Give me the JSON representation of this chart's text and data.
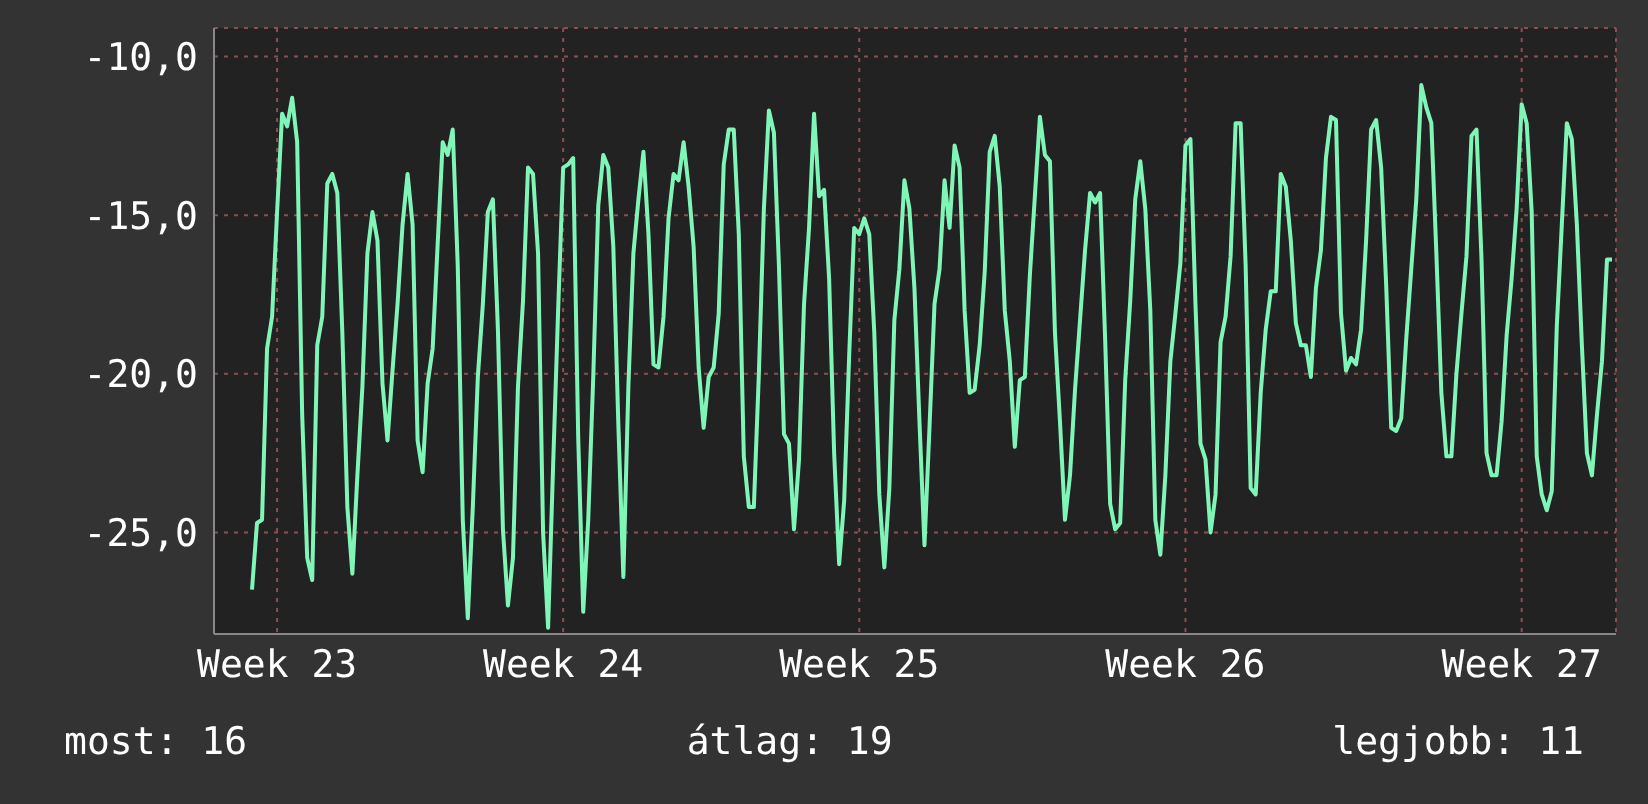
{
  "chart_data": {
    "type": "line",
    "categories": [
      null,
      null,
      null,
      null,
      null,
      "Week 23",
      null,
      null,
      null,
      null,
      null,
      null,
      null,
      null,
      null,
      null,
      null,
      null,
      null,
      null,
      null,
      null,
      null,
      null,
      null,
      null,
      null,
      null,
      null,
      null,
      null,
      null,
      null,
      null,
      null,
      null,
      null,
      null,
      null,
      null,
      null,
      null,
      null,
      null,
      null,
      null,
      null,
      null,
      null,
      null,
      null,
      null,
      null,
      null,
      null,
      null,
      null,
      null,
      null,
      null,
      null,
      null,
      "Week 24",
      null,
      null,
      null,
      null,
      null,
      null,
      null,
      null,
      null,
      null,
      null,
      null,
      null,
      null,
      null,
      null,
      null,
      null,
      null,
      null,
      null,
      null,
      null,
      null,
      null,
      null,
      null,
      null,
      null,
      null,
      null,
      null,
      null,
      null,
      null,
      null,
      null,
      null,
      null,
      null,
      null,
      null,
      null,
      null,
      null,
      null,
      null,
      null,
      null,
      null,
      null,
      null,
      null,
      null,
      null,
      null,
      null,
      null,
      "Week 25",
      null,
      null,
      null,
      null,
      null,
      null,
      null,
      null,
      null,
      null,
      null,
      null,
      null,
      null,
      null,
      null,
      null,
      null,
      null,
      null,
      null,
      null,
      null,
      null,
      null,
      null,
      null,
      null,
      null,
      null,
      null,
      null,
      null,
      null,
      null,
      null,
      null,
      null,
      null,
      null,
      null,
      null,
      null,
      null,
      null,
      null,
      null,
      null,
      null,
      null,
      null,
      null,
      null,
      null,
      null,
      null,
      null,
      null,
      null,
      null,
      null,
      null,
      null,
      null,
      "Week 26",
      null,
      null,
      null,
      null,
      null,
      null,
      null,
      null,
      null,
      null,
      null,
      null,
      null,
      null,
      null,
      null,
      null,
      null,
      null,
      null,
      null,
      null,
      null,
      null,
      null,
      null,
      null,
      null,
      null,
      null,
      null,
      null,
      null,
      null,
      null,
      null,
      null,
      null,
      null,
      null,
      null,
      null,
      null,
      null,
      null,
      null,
      null,
      null,
      null,
      null,
      null,
      null,
      null,
      null,
      null,
      null,
      null,
      null,
      null,
      null,
      null,
      null,
      null,
      null,
      null,
      null,
      "Week 27",
      null,
      null,
      null,
      null,
      null,
      null,
      null,
      null,
      null,
      null,
      null,
      null,
      null,
      null,
      null,
      null,
      null,
      null
    ],
    "series": [
      {
        "color": "#80f5b8",
        "values": [
          -26.8,
          -24.7,
          -24.6,
          -19.2,
          -18.2,
          -14.9,
          -11.8,
          -12.2,
          -11.3,
          -12.7,
          -21.3,
          -25.8,
          -26.5,
          -19.1,
          -18.2,
          -14.0,
          -13.7,
          -14.3,
          -18.7,
          -24.2,
          -26.3,
          -23.2,
          -20.4,
          -16.2,
          -14.9,
          -15.8,
          -20.3,
          -22.1,
          -19.9,
          -17.8,
          -15.3,
          -13.7,
          -15.3,
          -22.1,
          -23.1,
          -20.3,
          -19.2,
          -15.9,
          -12.7,
          -13.1,
          -12.3,
          -16.6,
          -24.6,
          -27.7,
          -24.2,
          -20.1,
          -17.8,
          -14.9,
          -14.5,
          -18.6,
          -24.9,
          -27.3,
          -25.8,
          -20.4,
          -17.7,
          -13.5,
          -13.7,
          -16.2,
          -25.0,
          -28.0,
          -22.9,
          -18.0,
          -13.5,
          -13.4,
          -13.2,
          -22.0,
          -27.5,
          -24.6,
          -20.1,
          -14.7,
          -13.1,
          -13.5,
          -16.0,
          -21.6,
          -26.4,
          -20.4,
          -16.2,
          -14.5,
          -13.0,
          -15.6,
          -19.7,
          -19.8,
          -18.2,
          -15.1,
          -13.7,
          -13.9,
          -12.7,
          -14.1,
          -16.0,
          -19.8,
          -21.7,
          -20.1,
          -19.8,
          -18.1,
          -13.4,
          -12.3,
          -12.3,
          -15.6,
          -22.6,
          -24.2,
          -24.2,
          -20.0,
          -14.8,
          -11.7,
          -12.4,
          -16.6,
          -21.9,
          -22.2,
          -24.9,
          -22.7,
          -17.8,
          -15.4,
          -11.8,
          -14.4,
          -14.2,
          -17.0,
          -22.5,
          -26.0,
          -24.0,
          -19.4,
          -15.4,
          -15.6,
          -15.1,
          -15.6,
          -18.7,
          -23.8,
          -26.1,
          -23.6,
          -18.3,
          -16.7,
          -13.9,
          -14.8,
          -17.3,
          -21.5,
          -25.4,
          -21.7,
          -17.8,
          -16.7,
          -13.9,
          -15.4,
          -12.8,
          -13.5,
          -18.0,
          -20.6,
          -20.5,
          -19.1,
          -16.8,
          -13.0,
          -12.5,
          -14.1,
          -18.0,
          -19.6,
          -22.3,
          -20.2,
          -20.1,
          -16.9,
          -14.4,
          -11.9,
          -13.1,
          -13.3,
          -18.7,
          -21.5,
          -24.6,
          -23.2,
          -20.5,
          -18.3,
          -16.1,
          -14.3,
          -14.6,
          -14.3,
          -18.9,
          -24.1,
          -24.9,
          -24.7,
          -20.2,
          -17.7,
          -14.5,
          -13.3,
          -14.8,
          -18.0,
          -24.6,
          -25.7,
          -23.2,
          -19.6,
          -18.1,
          -16.5,
          -12.8,
          -12.6,
          -17.8,
          -22.2,
          -22.7,
          -25.0,
          -23.8,
          -19.0,
          -18.2,
          -16.3,
          -12.1,
          -12.1,
          -16.6,
          -23.6,
          -23.8,
          -20.6,
          -18.6,
          -17.4,
          -17.4,
          -13.7,
          -14.1,
          -15.8,
          -18.4,
          -19.1,
          -19.1,
          -20.1,
          -17.3,
          -16.1,
          -13.2,
          -11.9,
          -12.0,
          -18.1,
          -19.9,
          -19.5,
          -19.7,
          -18.6,
          -15.8,
          -12.3,
          -12.0,
          -13.5,
          -17.2,
          -21.7,
          -21.8,
          -21.4,
          -18.9,
          -16.7,
          -14.5,
          -10.9,
          -11.6,
          -12.1,
          -16.2,
          -20.6,
          -22.6,
          -22.6,
          -20.0,
          -18.1,
          -16.3,
          -12.5,
          -12.3,
          -16.4,
          -22.5,
          -23.2,
          -23.2,
          -21.5,
          -18.8,
          -17.0,
          -14.8,
          -11.5,
          -12.1,
          -14.9,
          -22.6,
          -23.8,
          -24.3,
          -23.7,
          -18.5,
          -15.3,
          -12.1,
          -12.6,
          -15.3,
          -19.1,
          -22.5,
          -23.2,
          -21.3,
          -19.6,
          -16.4,
          -16.4
        ]
      }
    ],
    "ylim": [
      -28.2,
      -9.1
    ],
    "yticks": [
      {
        "value": -25,
        "label": "-25,0"
      },
      {
        "value": -20,
        "label": "-20,0"
      },
      {
        "value": -15,
        "label": "-15,0"
      },
      {
        "value": -10,
        "label": "-10,0"
      }
    ],
    "grid": true,
    "marker": "none",
    "line_style": "solid",
    "annotations": [
      "most: 16",
      "átlag: 19",
      "legjobb: 11"
    ]
  }
}
